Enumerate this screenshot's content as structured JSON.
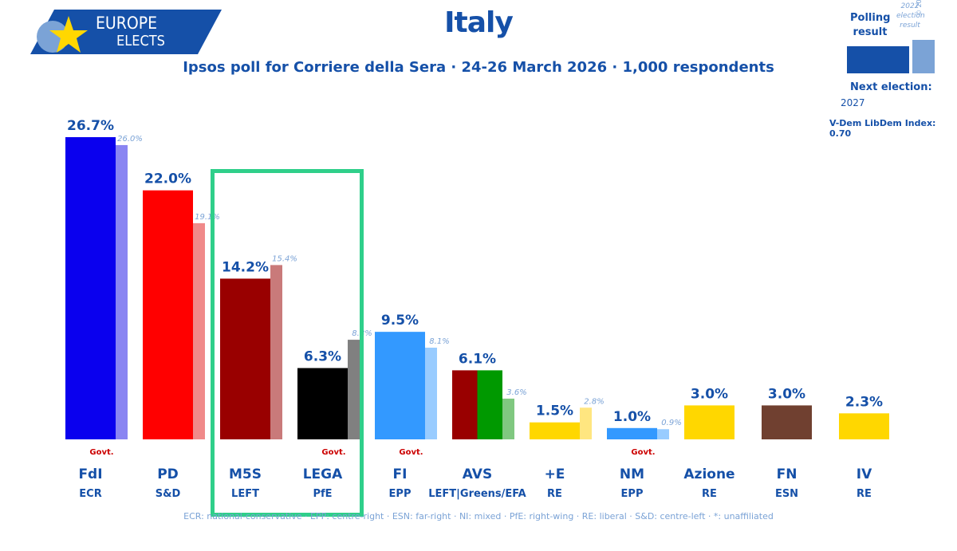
{
  "header": {
    "title": "Italy",
    "subtitle": "Ipsos poll for Corriere della Sera · 24-26 March 2026 · 1,000 respondents",
    "logo_line1": "EUROPE",
    "logo_line2": "ELECTS"
  },
  "legend": {
    "polling_label": "Polling result",
    "previous_label": "2022 election result",
    "copyright": "© 2026 @EuropeElects",
    "next_election_label": "Next election:",
    "next_election_year": "2027",
    "vdem": "V-Dem LibDem Index: 0.70"
  },
  "footer": "ECR: national-conservative · EPP: centre-right · ESN: far-right · NI: mixed · PfE: right-wing · RE: liberal · S&D: centre-left · *: unaffiliated",
  "colors": {
    "brand": "#1550a8",
    "highlight": "#2fcf8a",
    "govt": "#cc0000"
  },
  "chart_data": {
    "type": "bar",
    "ylim": [
      0,
      30
    ],
    "value_suffix": "%",
    "parties": [
      {
        "name": "FdI",
        "group": "ECR",
        "value": 26.7,
        "previous": 26.0,
        "govt": "Govt.",
        "colors": [
          "#0a00ee"
        ],
        "prev_color": "#8a85f2"
      },
      {
        "name": "PD",
        "group": "S&D",
        "value": 22.0,
        "previous": 19.1,
        "govt": "",
        "colors": [
          "#ff0000"
        ],
        "prev_color": "#f08a8a"
      },
      {
        "name": "M5S",
        "group": "LEFT",
        "value": 14.2,
        "previous": 15.4,
        "govt": "",
        "colors": [
          "#990000"
        ],
        "prev_color": "#c97a7a"
      },
      {
        "name": "LEGA",
        "group": "PfE",
        "value": 6.3,
        "previous": 8.8,
        "govt": "Govt.",
        "colors": [
          "#000000"
        ],
        "prev_color": "#808080"
      },
      {
        "name": "FI",
        "group": "EPP",
        "value": 9.5,
        "previous": 8.1,
        "govt": "Govt.",
        "colors": [
          "#3399ff"
        ],
        "prev_color": "#99ccff"
      },
      {
        "name": "AVS",
        "group": "LEFT|Greens/EFA",
        "value": 6.1,
        "previous": 3.6,
        "govt": "",
        "colors": [
          "#990000",
          "#009900"
        ],
        "prev_color": "#80c880"
      },
      {
        "name": "+E",
        "group": "RE",
        "value": 1.5,
        "previous": 2.8,
        "govt": "",
        "colors": [
          "#ffd700"
        ],
        "prev_color": "#ffe680"
      },
      {
        "name": "NM",
        "group": "EPP",
        "value": 1.0,
        "previous": 0.9,
        "govt": "Govt.",
        "colors": [
          "#3399ff"
        ],
        "prev_color": "#99ccff"
      },
      {
        "name": "Azione",
        "group": "RE",
        "value": 3.0,
        "previous": null,
        "govt": "",
        "colors": [
          "#ffd700"
        ],
        "prev_color": null
      },
      {
        "name": "FN",
        "group": "ESN",
        "value": 3.0,
        "previous": null,
        "govt": "",
        "colors": [
          "#704030"
        ],
        "prev_color": null
      },
      {
        "name": "IV",
        "group": "RE",
        "value": 2.3,
        "previous": null,
        "govt": "",
        "colors": [
          "#ffd700"
        ],
        "prev_color": null
      }
    ]
  }
}
